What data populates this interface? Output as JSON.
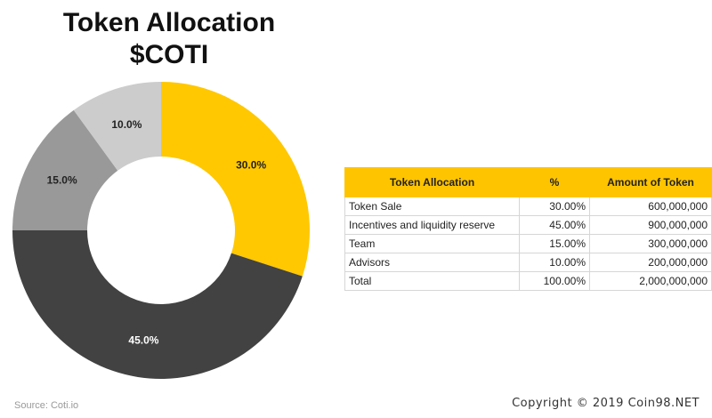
{
  "title_line1": "Token Allocation",
  "title_line2": "$COTI",
  "chart_data": {
    "type": "pie",
    "categories": [
      "Token Sale",
      "Incentives and liquidity reserve",
      "Team",
      "Advisors"
    ],
    "values": [
      30.0,
      45.0,
      15.0,
      10.0
    ],
    "data_labels": [
      "30.0%",
      "45.0%",
      "15.0%",
      "10.0%"
    ],
    "colors": [
      "#ffc800",
      "#424242",
      "#999999",
      "#cccccc"
    ],
    "donut": true
  },
  "table": {
    "headers": [
      "Token Allocation",
      "%",
      "Amount of Token"
    ],
    "rows": [
      [
        "Token Sale",
        "30.00%",
        "600,000,000"
      ],
      [
        "Incentives and liquidity reserve",
        "45.00%",
        "900,000,000"
      ],
      [
        "Team",
        "15.00%",
        "300,000,000"
      ],
      [
        "Advisors",
        "10.00%",
        "200,000,000"
      ],
      [
        "Total",
        "100.00%",
        "2,000,000,000"
      ]
    ]
  },
  "source": "Source: Coti.io",
  "copyright": "Copyright © 2019 Coin98.NET"
}
